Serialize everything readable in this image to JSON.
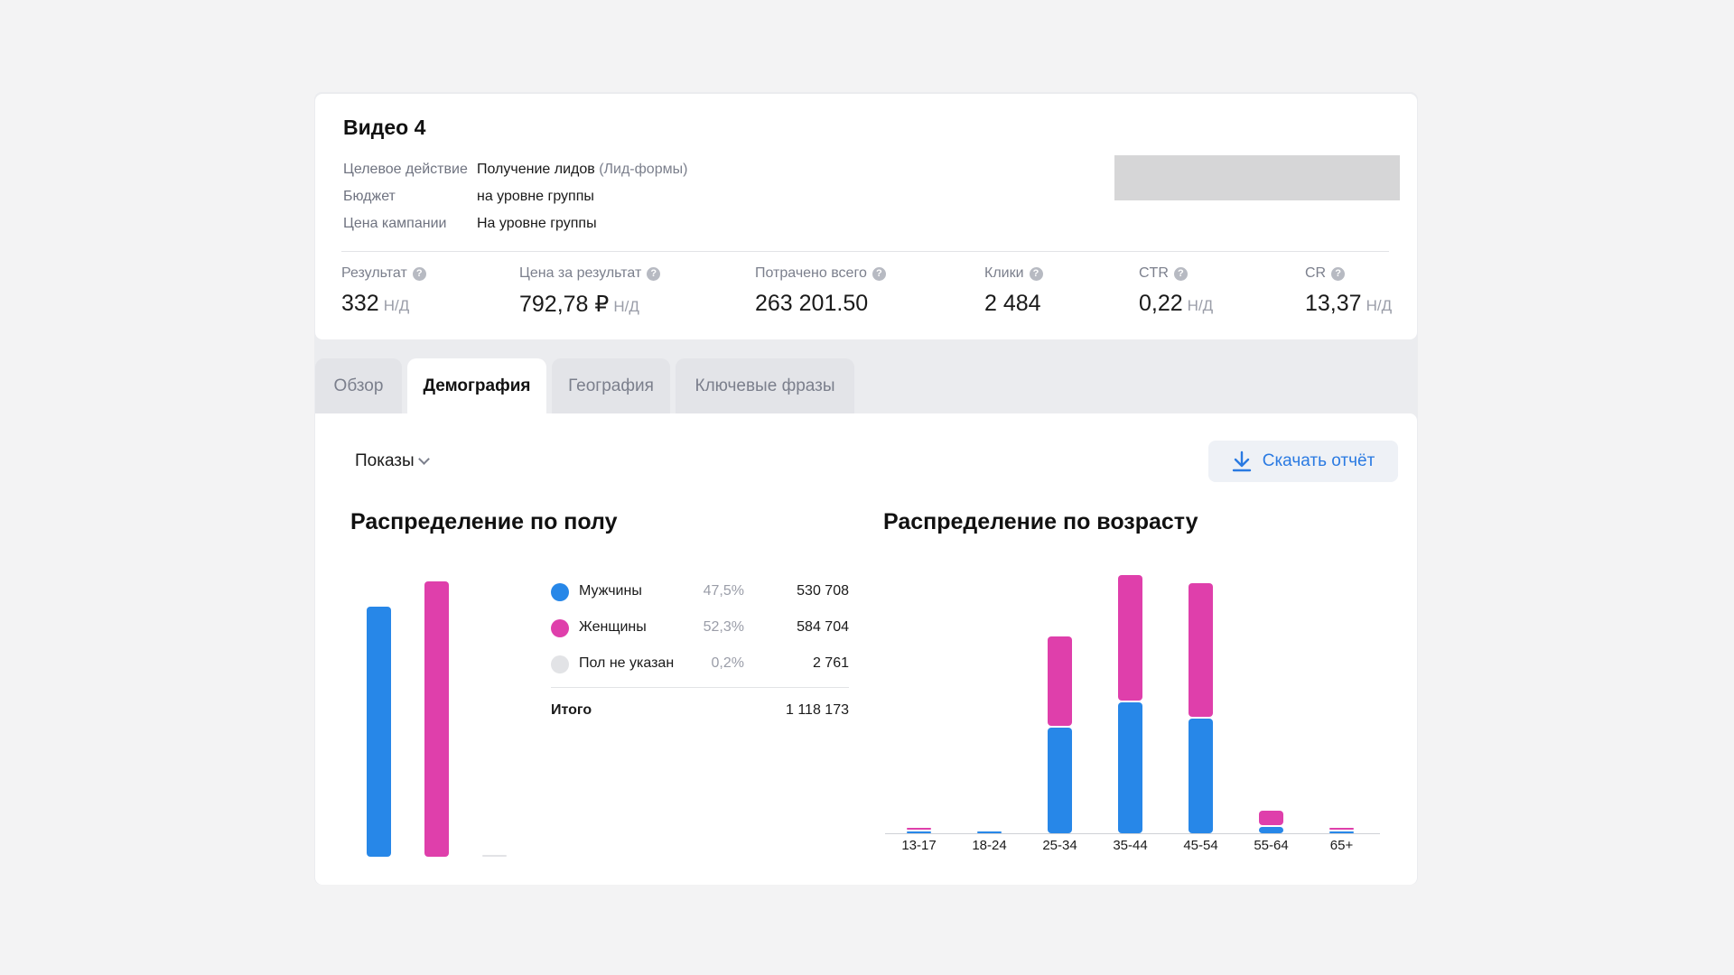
{
  "campaign": {
    "title": "Видео 4",
    "info": [
      {
        "label": "Целевое действие",
        "value": "Получение лидов",
        "note": "(Лид-формы)"
      },
      {
        "label": "Бюджет",
        "value": "на уровне группы",
        "note": ""
      },
      {
        "label": "Цена кампании",
        "value": "На уровне группы",
        "note": ""
      }
    ]
  },
  "metrics": [
    {
      "label": "Результат",
      "value": "332",
      "na": "Н/Д"
    },
    {
      "label": "Цена за результат",
      "value": "792,78 ₽",
      "na": "Н/Д"
    },
    {
      "label": "Потрачено всего",
      "value": "263 201.50",
      "na": ""
    },
    {
      "label": "Клики",
      "value": "2 484",
      "na": ""
    },
    {
      "label": "CTR",
      "value": "0,22",
      "na": "Н/Д"
    },
    {
      "label": "CR",
      "value": "13,37",
      "na": "Н/Д"
    }
  ],
  "help_glyph": "?",
  "tabs": [
    {
      "label": "Обзор",
      "active": false
    },
    {
      "label": "Демография",
      "active": true
    },
    {
      "label": "География",
      "active": false
    },
    {
      "label": "Ключевые фразы",
      "active": false
    }
  ],
  "toolbar": {
    "metric_select": "Показы",
    "download_label": "Скачать отчёт"
  },
  "gender": {
    "title": "Распределение по полу",
    "colors": {
      "male": "#2787e8",
      "female": "#df3fab",
      "unknown": "#e2e3e6"
    },
    "legend": [
      {
        "name": "Мужчины",
        "pct": "47,5%",
        "count": "530 708"
      },
      {
        "name": "Женщины",
        "pct": "52,3%",
        "count": "584 704"
      },
      {
        "name": "Пол не указан",
        "pct": "0,2%",
        "count": "2 761"
      }
    ],
    "total_label": "Итого",
    "total_value": "1 118 173"
  },
  "age": {
    "title": "Распределение по возрасту"
  },
  "chart_data": [
    {
      "type": "bar",
      "categories": [
        "Мужчины",
        "Женщины",
        "Пол не указан"
      ],
      "values": [
        530708,
        584704,
        2761
      ],
      "ylim": [
        0,
        584704
      ]
    },
    {
      "type": "bar",
      "stacked": true,
      "categories": [
        "13-17",
        "18-24",
        "25-34",
        "35-44",
        "45-54",
        "55-64",
        "65+"
      ],
      "series": [
        {
          "values": [
            1500,
            1500,
            133000,
            165000,
            145000,
            8000,
            1000
          ],
          "color": "#2787e8"
        },
        {
          "values": [
            500,
            0,
            113000,
            159000,
            169000,
            18000,
            1000
          ],
          "color": "#df3fab"
        }
      ],
      "ylim": [
        0,
        324000
      ]
    }
  ]
}
